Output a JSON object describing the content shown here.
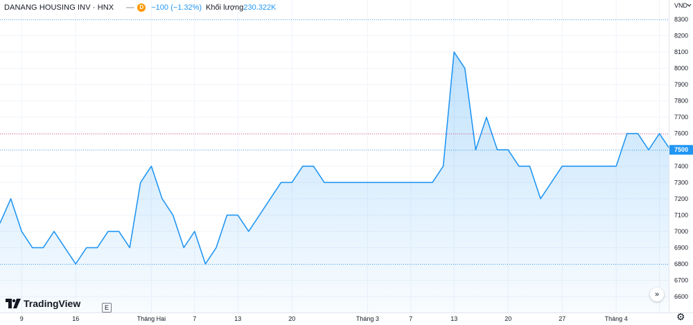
{
  "header": {
    "title": "DANANG HOUSING INV · HNX",
    "interval": "D",
    "change": "−100 (−1.32%)",
    "volume_label": "Khối lượng",
    "volume_value": "230.322K"
  },
  "logo_text": "TradingView",
  "e_button": "E",
  "scroll_icon": "double-chevron-right-icon",
  "settings_icon": "gear-icon",
  "colors": {
    "line": "#2196f3",
    "fill": "#2196f3",
    "dotted_blue": "#2196f3",
    "dotted_red": "#e91e63",
    "grid": "#f0f3fa",
    "axis_text": "#131722",
    "last_price_bg": "#2196f3"
  },
  "chart_data": {
    "type": "area",
    "y_unit": "VND",
    "ylim": [
      6550,
      8400
    ],
    "y_ticks": [
      6600,
      6700,
      6800,
      6900,
      7000,
      7100,
      7200,
      7300,
      7400,
      7500,
      7600,
      7700,
      7800,
      7900,
      8000,
      8100,
      8200,
      8300
    ],
    "x_ticks": [
      {
        "label": "9",
        "i": 2
      },
      {
        "label": "16",
        "i": 7
      },
      {
        "label": "Tháng Hai",
        "i": 14
      },
      {
        "label": "7",
        "i": 18
      },
      {
        "label": "13",
        "i": 22
      },
      {
        "label": "20",
        "i": 27
      },
      {
        "label": "Tháng 3",
        "i": 34
      },
      {
        "label": "7",
        "i": 38
      },
      {
        "label": "13",
        "i": 42
      },
      {
        "label": "20",
        "i": 47
      },
      {
        "label": "27",
        "i": 52
      },
      {
        "label": "Tháng 4",
        "i": 57
      },
      {
        "label": "",
        "i": 61
      }
    ],
    "values": [
      7050,
      7200,
      7000,
      6900,
      6900,
      7000,
      6900,
      6800,
      6900,
      6900,
      7000,
      7000,
      6900,
      7300,
      7400,
      7200,
      7100,
      6900,
      7000,
      6800,
      6900,
      7100,
      7100,
      7000,
      7100,
      7200,
      7300,
      7300,
      7400,
      7400,
      7300,
      7300,
      7300,
      7300,
      7300,
      7300,
      7300,
      7300,
      7300,
      7300,
      7300,
      7400,
      8100,
      8000,
      7500,
      7700,
      7500,
      7500,
      7400,
      7400,
      7200,
      7300,
      7400,
      7400,
      7400,
      7400,
      7400,
      7400,
      7600,
      7600,
      7500,
      7600,
      7500
    ],
    "reference_lines": [
      {
        "value": 8300,
        "style": "dotted",
        "color": "blue"
      },
      {
        "value": 7600,
        "style": "dotted",
        "color": "red"
      },
      {
        "value": 7500,
        "style": "dotted",
        "color": "blue"
      },
      {
        "value": 6800,
        "style": "dotted",
        "color": "blue"
      }
    ],
    "last_price": 7500,
    "last_price_label": "7500",
    "grid": true
  }
}
